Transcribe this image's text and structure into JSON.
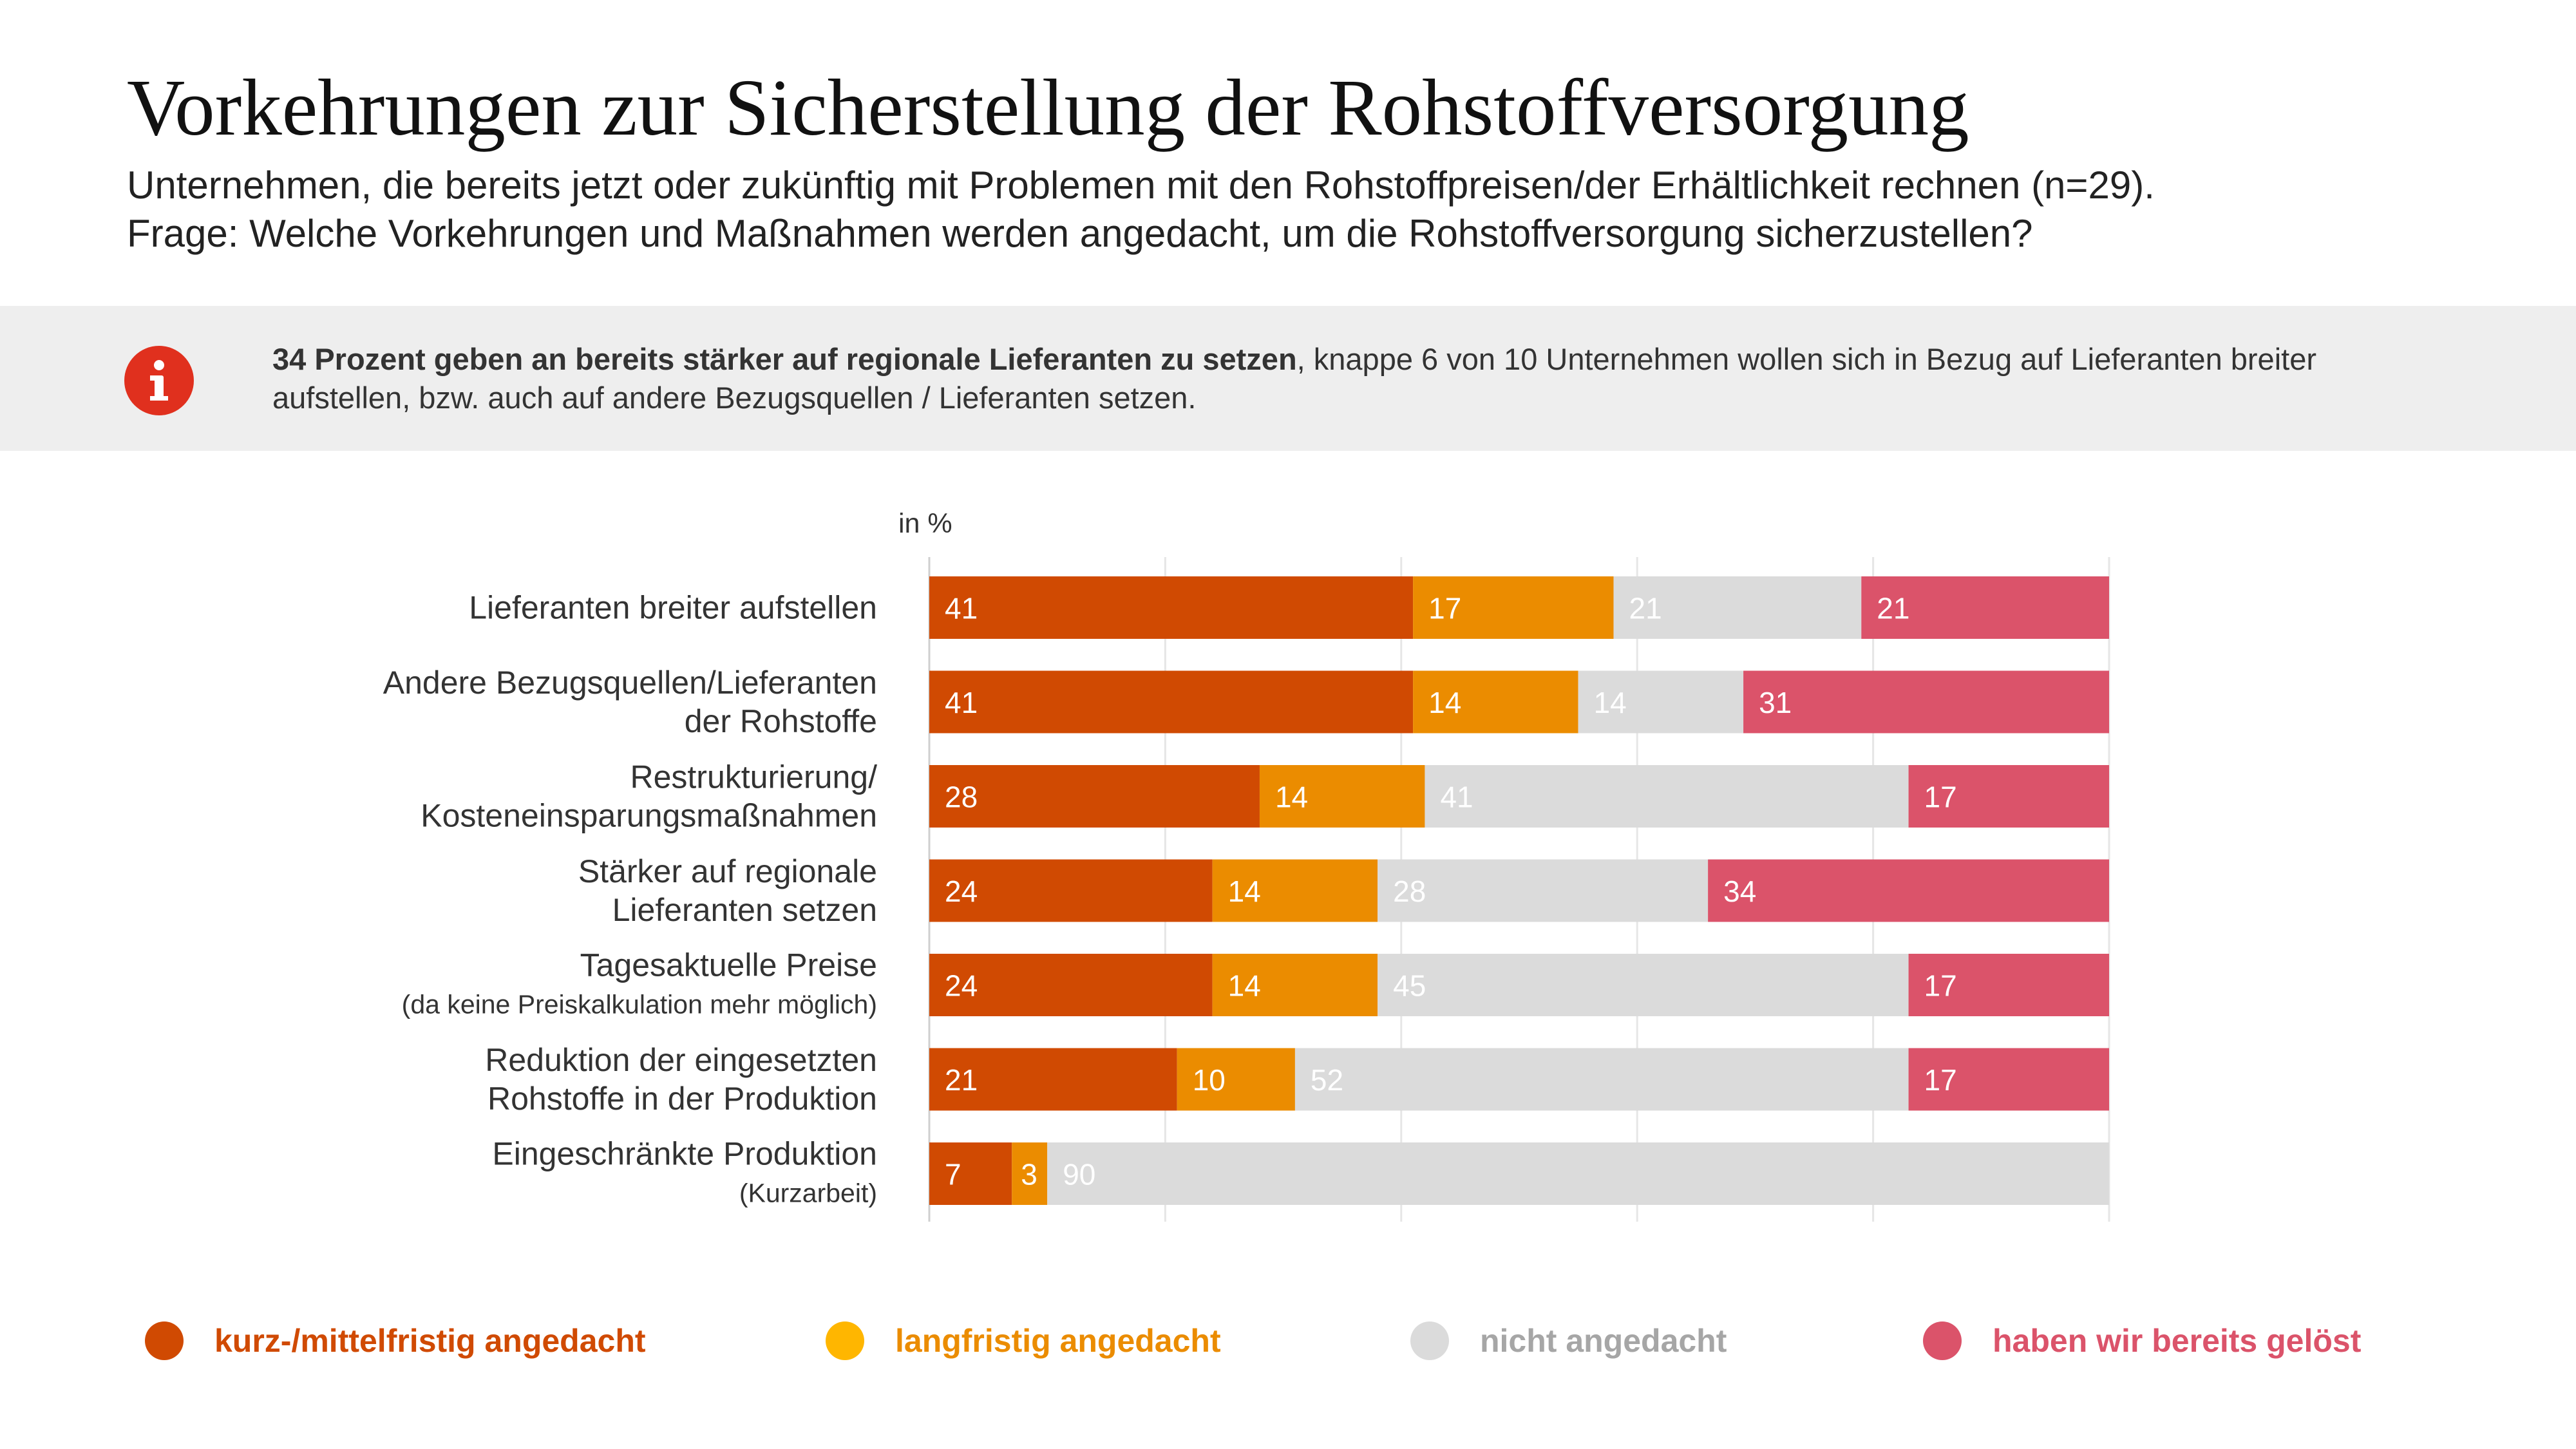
{
  "header": {
    "title": "Vorkehrungen zur Sicherstellung der Rohstoffversorgung",
    "subtitle_line1": "Unternehmen, die bereits jetzt oder zukünftig mit Problemen mit den Rohstoffpreisen/der Erhältlichkeit rechnen (n=29).",
    "subtitle_line2": "Frage: Welche Vorkehrungen und Maßnahmen werden angedacht, um die Rohstoffversorgung sicherzustellen?"
  },
  "banner": {
    "icon": "info-icon",
    "bold_text": "34 Prozent geben an bereits stärker auf regionale Lieferanten zu setzen",
    "text": ", knappe 6 von 10 Unternehmen wollen sich in Bezug auf Lieferanten breiter aufstellen, bzw. auch auf andere Bezugsquellen / Lieferanten setzen."
  },
  "colors": {
    "short_term": "#D04A02",
    "long_term": "#EB8C00",
    "not_planned": "#DBDBDB",
    "solved": "#DB536A",
    "icon_red": "#E0301E",
    "legend_long_term": "#FFB600",
    "legend_not_planned_text": "#A6A6A6"
  },
  "chart_data": {
    "type": "bar",
    "orientation": "horizontal",
    "stacked": true,
    "unit_label": "in %",
    "xlim": [
      0,
      100
    ],
    "grid": true,
    "legend_position": "bottom",
    "categories": [
      {
        "lines": [
          "Lieferanten breiter aufstellen"
        ],
        "note": ""
      },
      {
        "lines": [
          "Andere Bezugsquellen/Lieferanten",
          "der Rohstoffe"
        ],
        "note": ""
      },
      {
        "lines": [
          "Restrukturierung/",
          "Kosteneinsparungsmaßnahmen"
        ],
        "note": ""
      },
      {
        "lines": [
          "Stärker auf regionale",
          "Lieferanten setzen"
        ],
        "note": ""
      },
      {
        "lines": [
          "Tagesaktuelle Preise"
        ],
        "note": "(da keine Preiskalkulation mehr möglich)"
      },
      {
        "lines": [
          "Reduktion der eingesetzten",
          "Rohstoffe in der Produktion"
        ],
        "note": ""
      },
      {
        "lines": [
          "Eingeschränkte Produktion"
        ],
        "note": "(Kurzarbeit)"
      }
    ],
    "series": [
      {
        "name": "kurz-/mittelfristig angedacht",
        "color": "#D04A02",
        "label_color": "#ffffff",
        "values": [
          41,
          41,
          28,
          24,
          24,
          21,
          7
        ]
      },
      {
        "name": "langfristig angedacht",
        "color": "#EB8C00",
        "label_color": "#ffffff",
        "values": [
          17,
          14,
          14,
          14,
          14,
          10,
          3
        ]
      },
      {
        "name": "nicht angedacht",
        "color": "#DBDBDB",
        "label_color": "#ffffff",
        "values": [
          21,
          14,
          41,
          28,
          45,
          52,
          90
        ]
      },
      {
        "name": "haben wir bereits gelöst",
        "color": "#DB536A",
        "label_color": "#ffffff",
        "values": [
          21,
          31,
          17,
          34,
          17,
          17,
          null
        ]
      }
    ]
  },
  "legend": [
    {
      "label": "kurz-/mittelfristig angedacht",
      "dot_color": "#D04A02",
      "text_color": "#D04A02"
    },
    {
      "label": "langfristig angedacht",
      "dot_color": "#FFB600",
      "text_color": "#EB8C00"
    },
    {
      "label": "nicht angedacht",
      "dot_color": "#DBDBDB",
      "text_color": "#A6A6A6"
    },
    {
      "label": "haben wir bereits gelöst",
      "dot_color": "#DB536A",
      "text_color": "#DB536A"
    }
  ]
}
